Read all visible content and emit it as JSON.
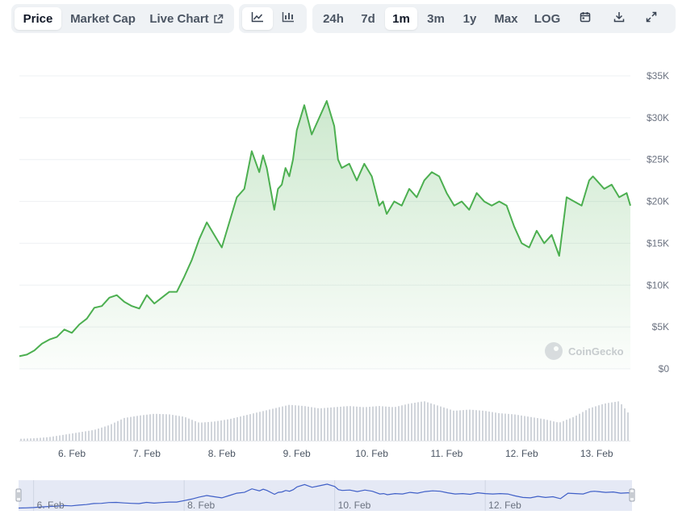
{
  "toolbar": {
    "price_tabs": [
      {
        "label": "Price",
        "active": true
      },
      {
        "label": "Market Cap",
        "active": false
      },
      {
        "label": "Live Chart",
        "active": false,
        "icon": "external-link-icon"
      }
    ],
    "chart_types": [
      {
        "icon": "line-chart-icon",
        "active": true
      },
      {
        "icon": "candlestick-chart-icon",
        "active": false
      }
    ],
    "ranges": [
      {
        "label": "24h",
        "active": false
      },
      {
        "label": "7d",
        "active": false
      },
      {
        "label": "1m",
        "active": true
      },
      {
        "label": "3m",
        "active": false
      },
      {
        "label": "1y",
        "active": false
      },
      {
        "label": "Max",
        "active": false
      },
      {
        "label": "LOG",
        "active": false
      }
    ],
    "actions": [
      {
        "icon": "calendar-icon"
      },
      {
        "icon": "download-icon"
      },
      {
        "icon": "expand-icon"
      }
    ]
  },
  "watermark": "CoinGecko",
  "colors": {
    "line": "#4caf50",
    "area_top": "#4caf50",
    "volume": "#d1d5db",
    "navigator_line": "#3f5fc7",
    "navigator_bg": "#e5e9f5",
    "grid": "#eef0f3"
  },
  "chart_data": {
    "type": "area",
    "yaxis": {
      "ticks": [
        0,
        5000,
        10000,
        15000,
        20000,
        25000,
        30000,
        35000
      ],
      "tick_labels": [
        "$0",
        "$5K",
        "$10K",
        "$15K",
        "$20K",
        "$25K",
        "$30K",
        "$35K"
      ],
      "ylim": [
        0,
        35000
      ],
      "position": "right"
    },
    "xaxis": {
      "ticks": [
        5.5,
        6.5,
        7.5,
        8.5,
        9.5,
        10.5,
        11.5,
        12.5
      ],
      "tick_labels": [
        "6. Feb",
        "7. Feb",
        "8. Feb",
        "9. Feb",
        "10. Feb",
        "11. Feb",
        "12. Feb",
        "13. Feb"
      ],
      "xlim": [
        4.8,
        12.95
      ]
    },
    "price_series": {
      "x": [
        4.8,
        4.9,
        5.0,
        5.1,
        5.2,
        5.3,
        5.4,
        5.5,
        5.6,
        5.7,
        5.8,
        5.9,
        6.0,
        6.1,
        6.2,
        6.3,
        6.4,
        6.5,
        6.6,
        6.7,
        6.8,
        6.9,
        7.0,
        7.1,
        7.2,
        7.3,
        7.4,
        7.5,
        7.6,
        7.7,
        7.8,
        7.9,
        8.0,
        8.05,
        8.1,
        8.2,
        8.25,
        8.3,
        8.35,
        8.4,
        8.45,
        8.5,
        8.6,
        8.7,
        8.8,
        8.9,
        9.0,
        9.05,
        9.1,
        9.2,
        9.3,
        9.35,
        9.4,
        9.5,
        9.6,
        9.65,
        9.7,
        9.8,
        9.9,
        10.0,
        10.1,
        10.2,
        10.3,
        10.4,
        10.5,
        10.6,
        10.7,
        10.8,
        10.9,
        11.0,
        11.1,
        11.2,
        11.3,
        11.4,
        11.5,
        11.6,
        11.7,
        11.8,
        11.9,
        12.0,
        12.1,
        12.2,
        12.3,
        12.4,
        12.45,
        12.5,
        12.6,
        12.7,
        12.8,
        12.9,
        12.95
      ],
      "y": [
        1500,
        1700,
        2200,
        3000,
        3500,
        3800,
        4700,
        4300,
        5300,
        6000,
        7300,
        7500,
        8500,
        8800,
        8000,
        7500,
        7200,
        8800,
        7800,
        8500,
        9200,
        9200,
        11000,
        13000,
        15500,
        17500,
        16000,
        14500,
        17500,
        20500,
        21500,
        26000,
        23500,
        25500,
        24000,
        19000,
        21500,
        22000,
        24000,
        23000,
        25000,
        28500,
        31500,
        28000,
        30000,
        32000,
        29000,
        25000,
        24000,
        24500,
        22500,
        23500,
        24500,
        23000,
        19500,
        20000,
        18500,
        20000,
        19500,
        21500,
        20500,
        22500,
        23500,
        23000,
        21000,
        19500,
        20000,
        19000,
        21000,
        20000,
        19500,
        20000,
        19500,
        17000,
        15000,
        14500,
        16500,
        15000,
        16000,
        13500,
        20500,
        20000,
        19500,
        22500,
        23000,
        22500,
        21500,
        22000,
        20500,
        21000,
        19500
      ]
    },
    "volume_series": {
      "x": [
        4.8,
        5.0,
        5.2,
        5.4,
        5.6,
        5.8,
        6.0,
        6.2,
        6.4,
        6.6,
        6.8,
        7.0,
        7.2,
        7.4,
        7.6,
        7.8,
        8.0,
        8.2,
        8.4,
        8.6,
        8.8,
        9.0,
        9.2,
        9.4,
        9.6,
        9.8,
        10.0,
        10.2,
        10.4,
        10.6,
        10.8,
        11.0,
        11.2,
        11.4,
        11.6,
        11.8,
        12.0,
        12.2,
        12.4,
        12.6,
        12.8,
        12.95
      ],
      "y": [
        3,
        4,
        6,
        10,
        14,
        18,
        26,
        38,
        42,
        45,
        44,
        40,
        30,
        32,
        36,
        42,
        48,
        54,
        60,
        58,
        54,
        56,
        58,
        56,
        58,
        56,
        62,
        66,
        58,
        50,
        52,
        50,
        46,
        44,
        40,
        36,
        30,
        40,
        54,
        62,
        66,
        42
      ]
    },
    "navigator": {
      "x_tick_labels": [
        "6. Feb",
        "8. Feb",
        "10. Feb",
        "12. Feb"
      ],
      "x_ticks": [
        5.5,
        7.5,
        9.5,
        11.5
      ]
    }
  }
}
